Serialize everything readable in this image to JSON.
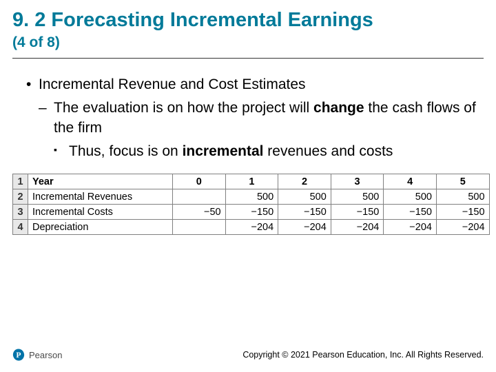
{
  "title": "9. 2 Forecasting Incremental Earnings",
  "subtitle": "(4 of 8)",
  "bullets": {
    "level1": "Incremental Revenue and Cost Estimates",
    "level2_pre": "The evaluation is on how the project will ",
    "level2_bold": "change",
    "level2_post": " the cash flows of the firm",
    "level3_pre": "Thus, focus is on ",
    "level3_bold": "incremental",
    "level3_post": " revenues and costs"
  },
  "table": {
    "rows": [
      {
        "idx": "1",
        "label": "Year",
        "vals": [
          "0",
          "1",
          "2",
          "3",
          "4",
          "5"
        ],
        "header": true
      },
      {
        "idx": "2",
        "label": "Incremental Revenues",
        "vals": [
          "",
          "500",
          "500",
          "500",
          "500",
          "500"
        ],
        "header": false
      },
      {
        "idx": "3",
        "label": "Incremental Costs",
        "vals": [
          "−50",
          "−150",
          "−150",
          "−150",
          "−150",
          "−150"
        ],
        "header": false
      },
      {
        "idx": "4",
        "label": "Depreciation",
        "vals": [
          "",
          "−204",
          "−204",
          "−204",
          "−204",
          "−204"
        ],
        "header": false
      }
    ],
    "border_color": "#808080",
    "idx_bg": "#e8e8e8",
    "font_size": 14.5
  },
  "logo": {
    "brand": "Pearson",
    "mark_color": "#0073a8",
    "p_color": "#ffffff"
  },
  "copyright": "Copyright © 2021 Pearson Education, Inc. All Rights Reserved.",
  "colors": {
    "title": "#007a99",
    "text": "#000000",
    "hr": "#333333"
  }
}
